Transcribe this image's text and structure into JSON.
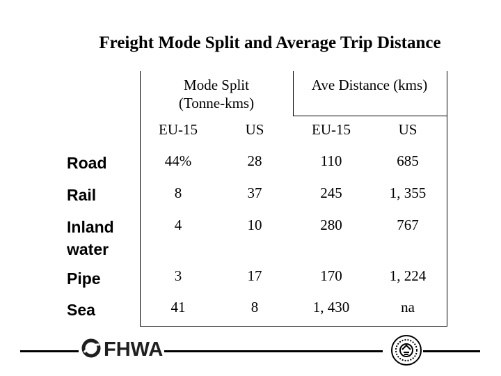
{
  "title": "Freight Mode Split and Average Trip Distance",
  "header": {
    "group1": "Mode Split\n(Tonne-kms)",
    "group1_line1": "Mode Split",
    "group1_line2": "(Tonne-kms)",
    "group2": "Ave Distance (kms)",
    "sub": [
      "EU-15",
      "US",
      "EU-15",
      "US"
    ]
  },
  "rows": [
    {
      "label": "Road",
      "values": [
        "44%",
        "28",
        "110",
        "685"
      ]
    },
    {
      "label": "Rail",
      "values": [
        "8",
        "37",
        "245",
        "1, 355"
      ]
    },
    {
      "label": "Inland water",
      "label_line1": "Inland",
      "label_line2": "water",
      "values": [
        "4",
        "10",
        "280",
        "767"
      ]
    },
    {
      "label": "Pipe",
      "values": [
        "3",
        "17",
        "170",
        "1, 224"
      ]
    },
    {
      "label": "Sea",
      "values": [
        "41",
        "8",
        "1, 430",
        "na"
      ]
    }
  ],
  "footer": {
    "logo_text": "FHWA",
    "logo_icon": "fhwa-swoosh-icon",
    "seal_icon": "dot-seal-icon"
  }
}
